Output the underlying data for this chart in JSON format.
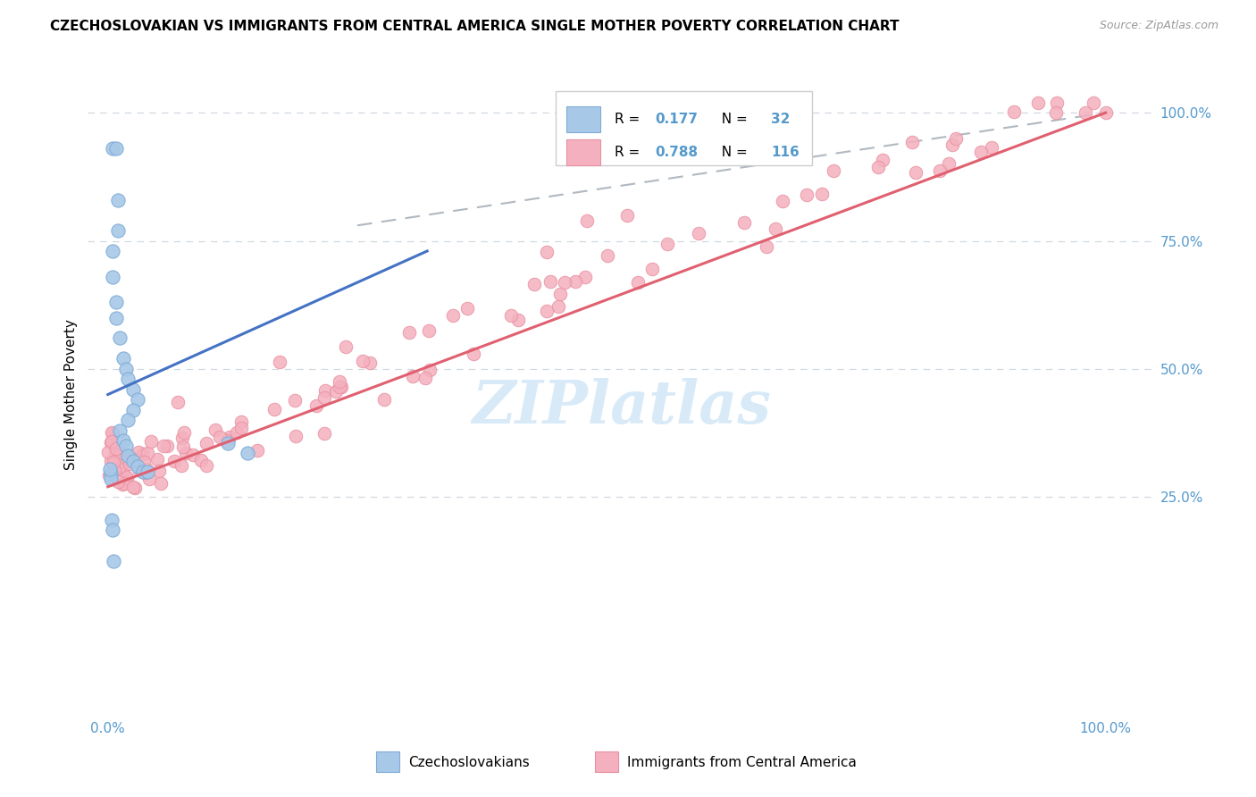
{
  "title": "CZECHOSLOVAKIAN VS IMMIGRANTS FROM CENTRAL AMERICA SINGLE MOTHER POVERTY CORRELATION CHART",
  "source": "Source: ZipAtlas.com",
  "ylabel": "Single Mother Poverty",
  "blue_color": "#a8c8e8",
  "blue_edge_color": "#7facd6",
  "pink_color": "#f4b0be",
  "pink_edge_color": "#e890a0",
  "blue_line_color": "#4472c4",
  "pink_line_color": "#e06070",
  "dash_color": "#b0b8c0",
  "grid_color": "#d0d8e0",
  "tick_color": "#5599cc",
  "watermark_color": "#d8eaf8",
  "legend_r1_text": "R =  0.177   N =  32",
  "legend_r2_text": "R = 0.788   N = 116",
  "r1_val": "0.177",
  "n1_val": "32",
  "r2_val": "0.788",
  "n2_val": "116",
  "blue_label": "Czechoslovakians",
  "pink_label": "Immigrants from Central America",
  "blue_line_x": [
    0.0,
    0.32
  ],
  "blue_line_y": [
    0.45,
    0.73
  ],
  "pink_line_x": [
    0.0,
    1.0
  ],
  "pink_line_y": [
    0.27,
    1.0
  ],
  "dash_line_x": [
    0.25,
    1.0
  ],
  "dash_line_y": [
    0.78,
    1.0
  ],
  "xlim": [
    -0.02,
    1.05
  ],
  "ylim": [
    -0.18,
    1.08
  ]
}
